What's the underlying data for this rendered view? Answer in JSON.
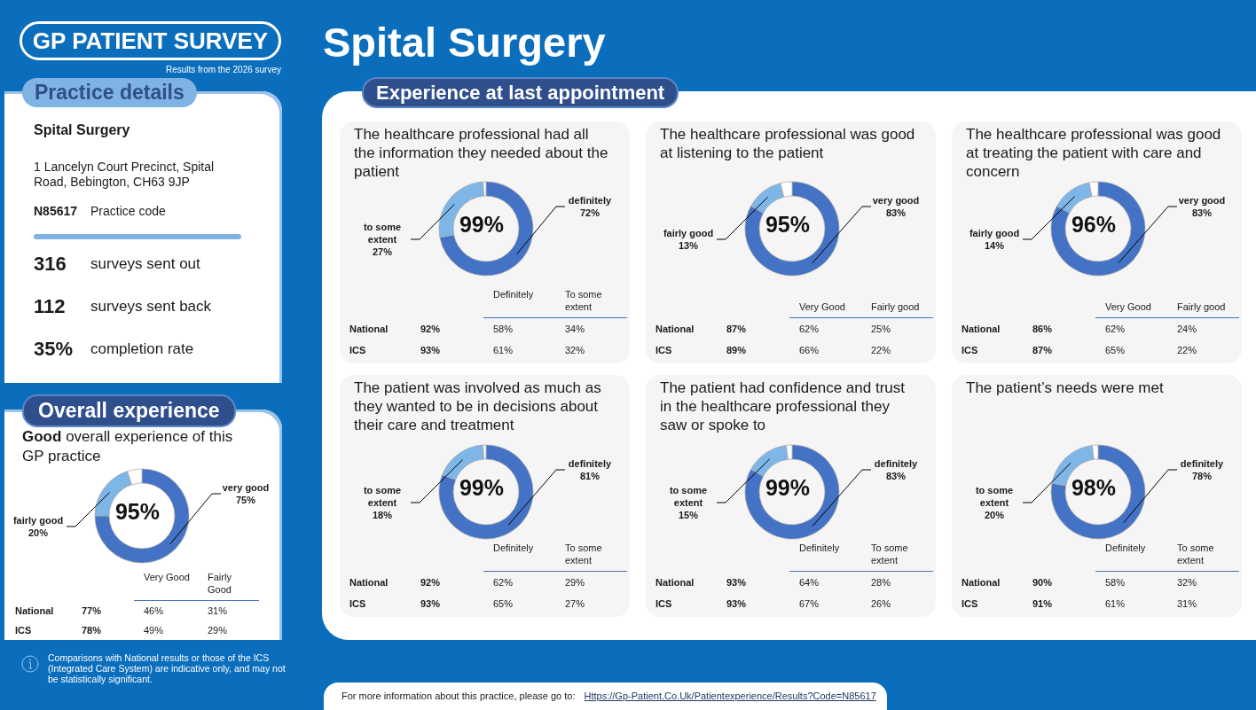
{
  "chart_data": [
    {
      "type": "other",
      "title": "Spital Surgery",
      "annotations": [
        "GP PATIENT SURVEY",
        "Results from the 2026 survey",
        "Comparisons with National results or those of the ICS (Integrated Care System) are indicative only, and may not be statistically significant.",
        "For more information about this practice, please go to:",
        "Https://Gp-Patient.Co.Uk/Patientexperience/Results?Code=N85617"
      ]
    },
    {
      "type": "other",
      "title": "Practice details",
      "annotations": [
        "Spital Surgery",
        "1 Lancelyn Court Precinct, Spital Road, Bebington, CH63 9JP",
        "N85617",
        "Practice code",
        "316",
        "surveys sent out",
        "112",
        "surveys sent back",
        "35%",
        "completion rate"
      ]
    },
    {
      "type": "donut",
      "title": "Overall experience",
      "subtitle": "Good overall experience of this GP practice",
      "categories": [
        "very good",
        "fairly good",
        null
      ],
      "values": [
        75,
        20,
        5
      ],
      "colors": [
        "#4472c4",
        "#7eb6e8",
        "#ffffff"
      ],
      "value_labels": [
        "75%",
        "20%",
        null
      ],
      "annotations": [
        "95%",
        "Very Good",
        "Fairly Good",
        "National",
        "77%",
        "46%",
        "31%",
        "ICS",
        "78%",
        "49%",
        "29%"
      ]
    },
    {
      "type": "other",
      "title": "Experience at last appointment"
    },
    {
      "type": "donut",
      "title": "The healthcare professional had all the information they needed about the patient",
      "categories": [
        "definitely",
        "to some extent",
        null
      ],
      "values": [
        72,
        27,
        1
      ],
      "colors": [
        "#4472c4",
        "#7eb6e8",
        "#ffffff"
      ],
      "value_labels": [
        "72%",
        "27%",
        null
      ],
      "annotations": [
        "99%",
        "Definitely",
        "To some extent",
        "National",
        "92%",
        "58%",
        "34%",
        "ICS",
        "93%",
        "61%",
        "32%"
      ]
    },
    {
      "type": "donut",
      "title": "The healthcare professional was good at listening to the patient",
      "categories": [
        "very good",
        "fairly good",
        null
      ],
      "values": [
        83,
        13,
        4
      ],
      "colors": [
        "#4472c4",
        "#7eb6e8",
        "#ffffff"
      ],
      "value_labels": [
        "83%",
        "13%",
        null
      ],
      "annotations": [
        "95%",
        "Very Good",
        "Fairly good",
        "National",
        "87%",
        "62%",
        "25%",
        "ICS",
        "89%",
        "66%",
        "22%"
      ]
    },
    {
      "type": "donut",
      "title": "The healthcare professional was good at treating the patient with care and concern",
      "categories": [
        "very good",
        "fairly good",
        null
      ],
      "values": [
        83,
        14,
        3
      ],
      "colors": [
        "#4472c4",
        "#7eb6e8",
        "#ffffff"
      ],
      "value_labels": [
        "83%",
        "14%",
        null
      ],
      "annotations": [
        "96%",
        "Very Good",
        "Fairly good",
        "National",
        "86%",
        "62%",
        "24%",
        "ICS",
        "87%",
        "65%",
        "22%"
      ]
    },
    {
      "type": "donut",
      "title": "The patient was involved as much as they wanted to be in decisions about their care and treatment",
      "categories": [
        "definitely",
        "to some extent",
        null
      ],
      "values": [
        81,
        18,
        1
      ],
      "colors": [
        "#4472c4",
        "#7eb6e8",
        "#ffffff"
      ],
      "value_labels": [
        "81%",
        "18%",
        null
      ],
      "annotations": [
        "99%",
        "Definitely",
        "To some extent",
        "National",
        "92%",
        "62%",
        "29%",
        "ICS",
        "93%",
        "65%",
        "27%"
      ]
    },
    {
      "type": "donut",
      "title": "The patient had confidence and trust in the healthcare professional they saw or spoke to",
      "categories": [
        "definitely",
        "to some extent",
        null
      ],
      "values": [
        83,
        15,
        2
      ],
      "colors": [
        "#4472c4",
        "#7eb6e8",
        "#ffffff"
      ],
      "value_labels": [
        "83%",
        "15%",
        null
      ],
      "annotations": [
        "99%",
        "Definitely",
        "To some extent",
        "National",
        "93%",
        "64%",
        "28%",
        "ICS",
        "93%",
        "67%",
        "26%"
      ]
    },
    {
      "type": "donut",
      "title": "The patient’s needs were met",
      "categories": [
        "definitely",
        "to some extent",
        null
      ],
      "values": [
        78,
        20,
        2
      ],
      "colors": [
        "#4472c4",
        "#7eb6e8",
        "#ffffff"
      ],
      "value_labels": [
        "78%",
        "20%",
        null
      ],
      "annotations": [
        "98%",
        "Definitely",
        "To some extent",
        "National",
        "90%",
        "58%",
        "32%",
        "ICS",
        "91%",
        "61%",
        "31%"
      ]
    }
  ]
}
